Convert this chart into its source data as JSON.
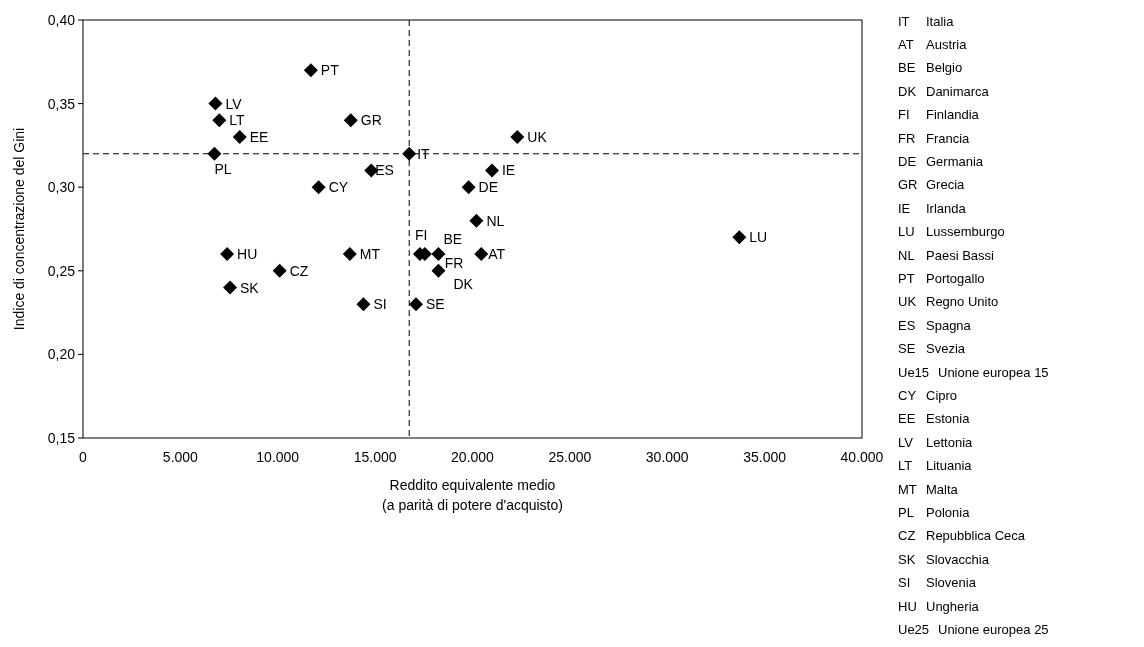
{
  "chart_data": {
    "type": "scatter",
    "xlabel": "Reddito equivalente medio\n(a parità di potere d'acquisto)",
    "ylabel": "Indice di concentrazione del Gini",
    "xlim": [
      0,
      40000
    ],
    "ylim": [
      0.15,
      0.4
    ],
    "xticks": [
      {
        "value": 0,
        "label": "0"
      },
      {
        "value": 5000,
        "label": "5.000"
      },
      {
        "value": 10000,
        "label": "10.000"
      },
      {
        "value": 15000,
        "label": "15.000"
      },
      {
        "value": 20000,
        "label": "20.000"
      },
      {
        "value": 25000,
        "label": "25.000"
      },
      {
        "value": 30000,
        "label": "30.000"
      },
      {
        "value": 35000,
        "label": "35.000"
      },
      {
        "value": 40000,
        "label": "40.000"
      }
    ],
    "yticks": [
      {
        "value": 0.15,
        "label": "0,15"
      },
      {
        "value": 0.2,
        "label": "0,20"
      },
      {
        "value": 0.25,
        "label": "0,25"
      },
      {
        "value": 0.3,
        "label": "0,30"
      },
      {
        "value": 0.35,
        "label": "0,35"
      },
      {
        "value": 0.4,
        "label": "0,40"
      }
    ],
    "grid": false,
    "marker": "diamond",
    "series": [
      {
        "color": "#000000",
        "x": [
          11700,
          6800,
          7000,
          8050,
          6750,
          13750,
          16750,
          14800,
          12100,
          22300,
          21000,
          19800,
          20200,
          33700,
          7400,
          10100,
          7550,
          13700,
          14400,
          17100,
          17300,
          17550,
          18250,
          18250,
          20450
        ],
        "values": [
          0.37,
          0.35,
          0.34,
          0.33,
          0.32,
          0.34,
          0.32,
          0.31,
          0.3,
          0.33,
          0.31,
          0.3,
          0.28,
          0.27,
          0.26,
          0.25,
          0.24,
          0.26,
          0.23,
          0.23,
          0.26,
          0.26,
          0.26,
          0.25,
          0.26
        ]
      }
    ],
    "ref_lines": [
      {
        "axis": "x",
        "value": 16750,
        "line_style": "dashed",
        "color": "#000000"
      },
      {
        "axis": "y",
        "value": 0.32,
        "line_style": "dashed",
        "color": "#000000"
      }
    ],
    "annotations": [
      {
        "text": "PT",
        "x": 11700,
        "y": 0.37
      },
      {
        "text": "LV",
        "x": 6800,
        "y": 0.35
      },
      {
        "text": "LT",
        "x": 7000,
        "y": 0.34
      },
      {
        "text": "EE",
        "x": 8050,
        "y": 0.33
      },
      {
        "text": "PL",
        "x": 6750,
        "y": 0.32
      },
      {
        "text": "GR",
        "x": 13750,
        "y": 0.34
      },
      {
        "text": "IT",
        "x": 16750,
        "y": 0.32
      },
      {
        "text": "ES",
        "x": 14800,
        "y": 0.31
      },
      {
        "text": "CY",
        "x": 12100,
        "y": 0.3
      },
      {
        "text": "UK",
        "x": 22300,
        "y": 0.33
      },
      {
        "text": "IE",
        "x": 21000,
        "y": 0.31
      },
      {
        "text": "DE",
        "x": 19800,
        "y": 0.3
      },
      {
        "text": "NL",
        "x": 20200,
        "y": 0.28
      },
      {
        "text": "LU",
        "x": 33700,
        "y": 0.27
      },
      {
        "text": "HU",
        "x": 7400,
        "y": 0.26
      },
      {
        "text": "CZ",
        "x": 10100,
        "y": 0.25
      },
      {
        "text": "SK",
        "x": 7550,
        "y": 0.24
      },
      {
        "text": "MT",
        "x": 13700,
        "y": 0.26
      },
      {
        "text": "SI",
        "x": 14400,
        "y": 0.23
      },
      {
        "text": "SE",
        "x": 17100,
        "y": 0.23
      },
      {
        "text": "FI",
        "x": 17300,
        "y": 0.26
      },
      {
        "text": "FR",
        "x": 17550,
        "y": 0.26
      },
      {
        "text": "BE",
        "x": 18250,
        "y": 0.26
      },
      {
        "text": "DK",
        "x": 18250,
        "y": 0.25
      },
      {
        "text": "AT",
        "x": 20450,
        "y": 0.26
      },
      "IT Italia",
      "AT Austria",
      "BE Belgio",
      "DK Danimarca",
      "FI Finlandia",
      "FR Francia",
      "DE Germania",
      "GR Grecia",
      "IE Irlanda",
      "LU Lussemburgo",
      "NL Paesi Bassi",
      "PT Portogallo",
      "UK Regno Unito",
      "ES Spagna",
      "SE Svezia",
      "Ue15 Unione europea 15",
      "CY Cipro",
      "EE Estonia",
      "LV Lettonia",
      "LT Lituania",
      "MT Malta",
      "PL Polonia",
      "CZ Repubblica Ceca",
      "SK Slovacchia",
      "SI Slovenia",
      "HU Ungheria",
      "Ue25 Unione europea 25"
    ]
  }
}
